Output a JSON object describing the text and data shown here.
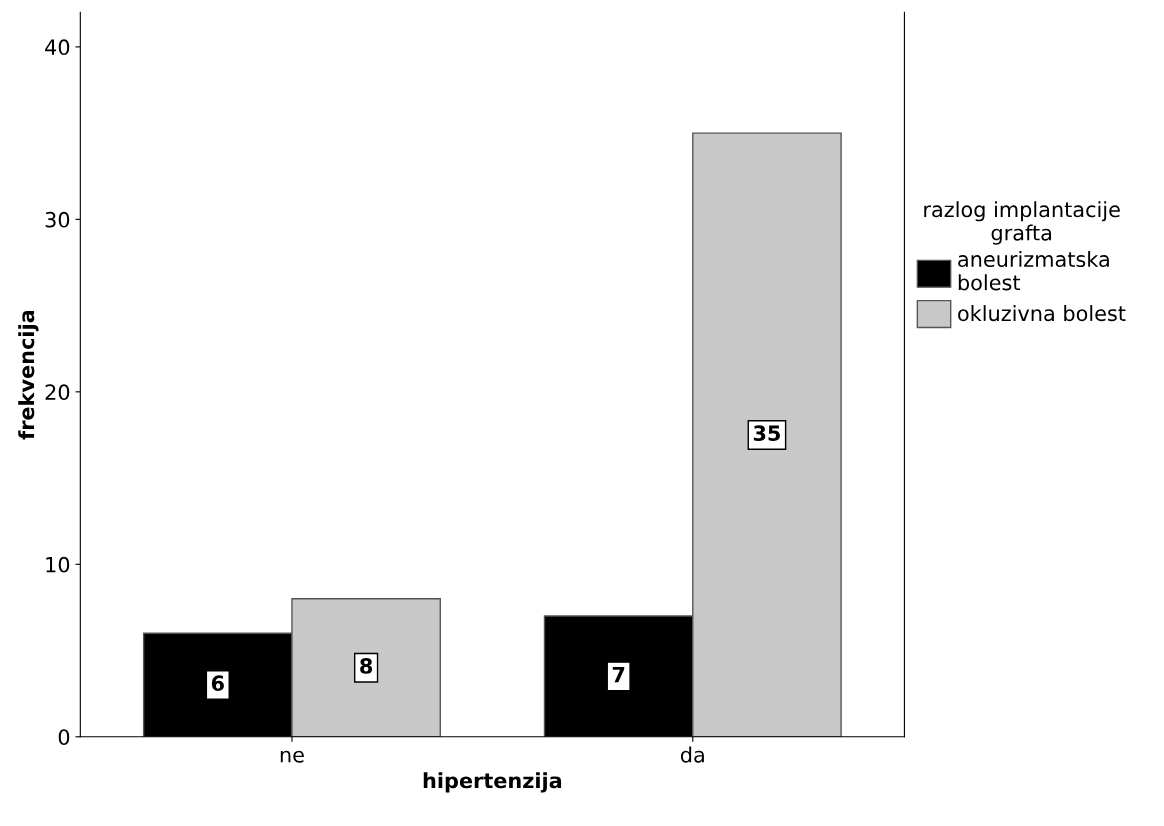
{
  "chart_data": {
    "type": "bar",
    "xlabel": "hipertenzija",
    "ylabel": "frekvencija",
    "legend_title": "razlog implantacije\ngrafta",
    "categories": [
      "ne",
      "da"
    ],
    "series": [
      {
        "name": "aneurizmatska\nbolest",
        "color": "#000000",
        "values": [
          6,
          7
        ]
      },
      {
        "name": "okluzivna bolest",
        "color": "#c8c8c8",
        "values": [
          8,
          35
        ]
      }
    ],
    "ylim": [
      0,
      42
    ],
    "yticks": [
      0,
      10,
      20,
      30,
      40
    ],
    "grid": false,
    "legend": "right",
    "data_labels": true
  }
}
